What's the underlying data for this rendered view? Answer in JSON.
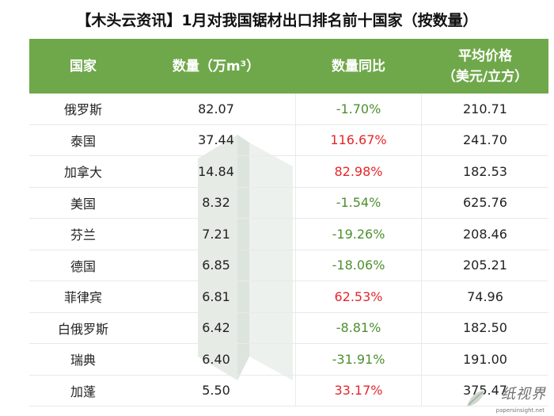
{
  "title": "【木头云资讯】1月对我国锯材出口排名前十国家（按数量）",
  "header": {
    "country": "国家",
    "quantity": "数量（万m³）",
    "yoy": "数量同比",
    "avg_price_line1": "平均价格",
    "avg_price_line2": "（美元/立方）"
  },
  "rows": [
    {
      "country": "俄罗斯",
      "quantity": "82.07",
      "yoy": "-1.70%",
      "price": "210.71"
    },
    {
      "country": "泰国",
      "quantity": "37.44",
      "yoy": "116.67%",
      "price": "241.70"
    },
    {
      "country": "加拿大",
      "quantity": "14.84",
      "yoy": "82.98%",
      "price": "182.53"
    },
    {
      "country": "美国",
      "quantity": "8.32",
      "yoy": "-1.54%",
      "price": "625.76"
    },
    {
      "country": "芬兰",
      "quantity": "7.21",
      "yoy": "-19.26%",
      "price": "208.46"
    },
    {
      "country": "德国",
      "quantity": "6.85",
      "yoy": "-18.06%",
      "price": "205.21"
    },
    {
      "country": "菲律宾",
      "quantity": "6.81",
      "yoy": "62.53%",
      "price": "74.96"
    },
    {
      "country": "白俄罗斯",
      "quantity": "6.42",
      "yoy": "-8.81%",
      "price": "182.50"
    },
    {
      "country": "瑞典",
      "quantity": "6.40",
      "yoy": "-31.91%",
      "price": "191.00"
    },
    {
      "country": "加蓬",
      "quantity": "5.50",
      "yoy": "33.17%",
      "price": "375.47"
    }
  ],
  "colors": {
    "header_bg": "#6fa84a",
    "negative": "#4c8f2f",
    "positive": "#e5262a"
  },
  "brand": {
    "name": "纸视界",
    "url": "papersinsight.net"
  }
}
